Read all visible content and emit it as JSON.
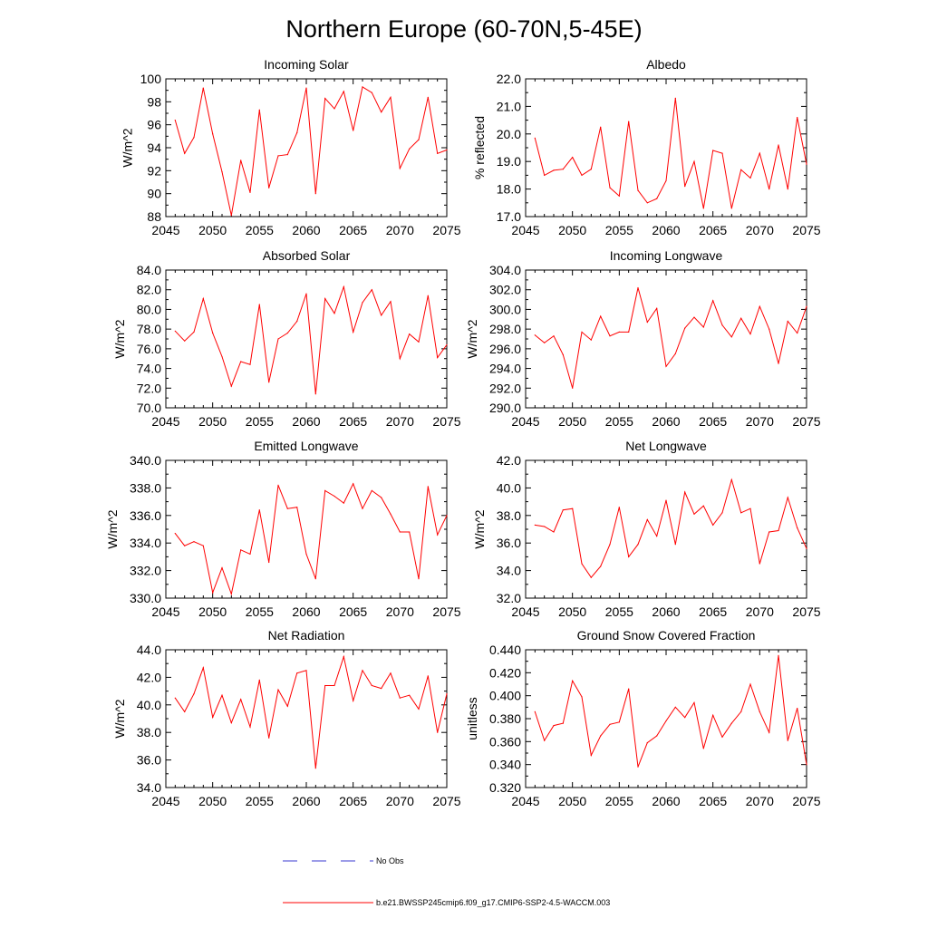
{
  "figure": {
    "title": "Northern Europe (60-70N,5-45E)"
  },
  "legend": {
    "obs_label": "No Obs",
    "obs_color": "#3a3ad0",
    "model_label": "b.e21.BWSSP245cmip6.f09_g17.CMIP6-SSP2-4.5-WACCM.003",
    "model_color": "#ff0000"
  },
  "chart_data": [
    {
      "type": "line",
      "title": "Incoming Solar",
      "xlabel": "",
      "ylabel": "W/m^2",
      "xlim": [
        2045,
        2075
      ],
      "ylim": [
        88,
        100
      ],
      "xticks": [
        "2045",
        "2050",
        "2055",
        "2060",
        "2065",
        "2070",
        "2075"
      ],
      "yticks": [
        "88",
        "90",
        "92",
        "94",
        "96",
        "98",
        "100"
      ],
      "x": [
        2046,
        2047,
        2048,
        2049,
        2050,
        2051,
        2052,
        2053,
        2054,
        2055,
        2056,
        2057,
        2058,
        2059,
        2060,
        2061,
        2062,
        2063,
        2064,
        2065,
        2066,
        2067,
        2068,
        2069,
        2070,
        2071,
        2072,
        2073,
        2074,
        2075
      ],
      "series": [
        {
          "name": "b.e21.BWSSP245cmip6.f09_g17.CMIP6-SSP2-4.5-WACCM.003",
          "values": [
            96.4,
            93.5,
            94.9,
            99.2,
            95.2,
            91.9,
            88.1,
            92.9,
            90.1,
            97.3,
            90.5,
            93.3,
            93.4,
            95.3,
            99.2,
            90.0,
            98.3,
            97.4,
            98.9,
            95.5,
            99.3,
            98.8,
            97.1,
            98.4,
            92.2,
            93.9,
            94.7,
            98.4,
            93.5,
            93.8
          ]
        }
      ]
    },
    {
      "type": "line",
      "title": "Albedo",
      "xlabel": "",
      "ylabel": "% reflected",
      "xlim": [
        2045,
        2075
      ],
      "ylim": [
        17.0,
        22.0
      ],
      "xticks": [
        "2045",
        "2050",
        "2055",
        "2060",
        "2065",
        "2070",
        "2075"
      ],
      "yticks": [
        "17.0",
        "18.0",
        "19.0",
        "20.0",
        "21.0",
        "22.0"
      ],
      "x": [
        2046,
        2047,
        2048,
        2049,
        2050,
        2051,
        2052,
        2053,
        2054,
        2055,
        2056,
        2057,
        2058,
        2059,
        2060,
        2061,
        2062,
        2063,
        2064,
        2065,
        2066,
        2067,
        2068,
        2069,
        2070,
        2071,
        2072,
        2073,
        2074,
        2075
      ],
      "series": [
        {
          "name": "b.e21.BWSSP245cmip6.f09_g17.CMIP6-SSP2-4.5-WACCM.003",
          "values": [
            19.85,
            18.5,
            18.68,
            18.72,
            19.15,
            18.5,
            18.72,
            20.25,
            18.05,
            17.75,
            20.45,
            17.95,
            17.5,
            17.65,
            18.3,
            21.3,
            18.1,
            19.0,
            17.3,
            19.4,
            19.3,
            17.3,
            18.7,
            18.4,
            19.3,
            18.0,
            19.6,
            18.0,
            20.6,
            18.9
          ]
        }
      ]
    },
    {
      "type": "line",
      "title": "Absorbed Solar",
      "xlabel": "",
      "ylabel": "W/m^2",
      "xlim": [
        2045,
        2075
      ],
      "ylim": [
        70.0,
        84.0
      ],
      "xticks": [
        "2045",
        "2050",
        "2055",
        "2060",
        "2065",
        "2070",
        "2075"
      ],
      "yticks": [
        "70.0",
        "72.0",
        "74.0",
        "76.0",
        "78.0",
        "80.0",
        "82.0",
        "84.0"
      ],
      "x": [
        2046,
        2047,
        2048,
        2049,
        2050,
        2051,
        2052,
        2053,
        2054,
        2055,
        2056,
        2057,
        2058,
        2059,
        2060,
        2061,
        2062,
        2063,
        2064,
        2065,
        2066,
        2067,
        2068,
        2069,
        2070,
        2071,
        2072,
        2073,
        2074,
        2075
      ],
      "series": [
        {
          "name": "b.e21.BWSSP245cmip6.f09_g17.CMIP6-SSP2-4.5-WACCM.003",
          "values": [
            77.8,
            76.8,
            77.7,
            81.1,
            77.6,
            75.2,
            72.2,
            74.7,
            74.4,
            80.5,
            72.6,
            77.0,
            77.6,
            78.8,
            81.6,
            71.4,
            81.1,
            79.6,
            82.3,
            77.7,
            80.7,
            82.0,
            79.4,
            80.8,
            75.0,
            77.5,
            76.7,
            81.4,
            75.1,
            76.4
          ]
        }
      ]
    },
    {
      "type": "line",
      "title": "Incoming Longwave",
      "xlabel": "",
      "ylabel": "W/m^2",
      "xlim": [
        2045,
        2075
      ],
      "ylim": [
        290.0,
        304.0
      ],
      "xticks": [
        "2045",
        "2050",
        "2055",
        "2060",
        "2065",
        "2070",
        "2075"
      ],
      "yticks": [
        "290.0",
        "292.0",
        "294.0",
        "296.0",
        "298.0",
        "300.0",
        "302.0",
        "304.0"
      ],
      "x": [
        2046,
        2047,
        2048,
        2049,
        2050,
        2051,
        2052,
        2053,
        2054,
        2055,
        2056,
        2057,
        2058,
        2059,
        2060,
        2061,
        2062,
        2063,
        2064,
        2065,
        2066,
        2067,
        2068,
        2069,
        2070,
        2071,
        2072,
        2073,
        2074,
        2075
      ],
      "series": [
        {
          "name": "b.e21.BWSSP245cmip6.f09_g17.CMIP6-SSP2-4.5-WACCM.003",
          "values": [
            297.4,
            296.6,
            297.3,
            295.4,
            292.0,
            297.7,
            296.9,
            299.3,
            297.3,
            297.7,
            297.7,
            302.2,
            298.7,
            300.1,
            294.2,
            295.5,
            298.1,
            299.2,
            298.2,
            300.9,
            298.4,
            297.2,
            299.1,
            297.5,
            300.3,
            298.0,
            294.5,
            298.8,
            297.6,
            300.3
          ]
        }
      ]
    },
    {
      "type": "line",
      "title": "Emitted Longwave",
      "xlabel": "",
      "ylabel": "W/m^2",
      "xlim": [
        2045,
        2075
      ],
      "ylim": [
        330.0,
        340.0
      ],
      "xticks": [
        "2045",
        "2050",
        "2055",
        "2060",
        "2065",
        "2070",
        "2075"
      ],
      "yticks": [
        "330.0",
        "332.0",
        "334.0",
        "336.0",
        "338.0",
        "340.0"
      ],
      "x": [
        2046,
        2047,
        2048,
        2049,
        2050,
        2051,
        2052,
        2053,
        2054,
        2055,
        2056,
        2057,
        2058,
        2059,
        2060,
        2061,
        2062,
        2063,
        2064,
        2065,
        2066,
        2067,
        2068,
        2069,
        2070,
        2071,
        2072,
        2073,
        2074,
        2075
      ],
      "series": [
        {
          "name": "b.e21.BWSSP245cmip6.f09_g17.CMIP6-SSP2-4.5-WACCM.003",
          "values": [
            334.7,
            333.8,
            334.1,
            333.8,
            330.4,
            332.2,
            330.3,
            333.5,
            333.2,
            336.4,
            332.6,
            338.2,
            336.5,
            336.6,
            333.2,
            331.4,
            337.8,
            337.4,
            336.9,
            338.3,
            336.5,
            337.8,
            337.3,
            336.1,
            334.8,
            334.8,
            331.4,
            338.1,
            334.6,
            336.0
          ]
        }
      ]
    },
    {
      "type": "line",
      "title": "Net Longwave",
      "xlabel": "",
      "ylabel": "W/m^2",
      "xlim": [
        2045,
        2075
      ],
      "ylim": [
        32.0,
        42.0
      ],
      "xticks": [
        "2045",
        "2050",
        "2055",
        "2060",
        "2065",
        "2070",
        "2075"
      ],
      "yticks": [
        "32.0",
        "34.0",
        "36.0",
        "38.0",
        "40.0",
        "42.0"
      ],
      "x": [
        2046,
        2047,
        2048,
        2049,
        2050,
        2051,
        2052,
        2053,
        2054,
        2055,
        2056,
        2057,
        2058,
        2059,
        2060,
        2061,
        2062,
        2063,
        2064,
        2065,
        2066,
        2067,
        2068,
        2069,
        2070,
        2071,
        2072,
        2073,
        2074,
        2075
      ],
      "series": [
        {
          "name": "b.e21.BWSSP245cmip6.f09_g17.CMIP6-SSP2-4.5-WACCM.003",
          "values": [
            37.3,
            37.2,
            36.8,
            38.4,
            38.5,
            34.5,
            33.5,
            34.3,
            35.9,
            38.6,
            35.0,
            35.9,
            37.7,
            36.5,
            39.1,
            35.9,
            39.7,
            38.1,
            38.7,
            37.3,
            38.2,
            40.6,
            38.2,
            38.5,
            34.5,
            36.8,
            36.9,
            39.3,
            37.1,
            35.6
          ]
        }
      ]
    },
    {
      "type": "line",
      "title": "Net Radiation",
      "xlabel": "",
      "ylabel": "W/m^2",
      "xlim": [
        2045,
        2075
      ],
      "ylim": [
        34.0,
        44.0
      ],
      "xticks": [
        "2045",
        "2050",
        "2055",
        "2060",
        "2065",
        "2070",
        "2075"
      ],
      "yticks": [
        "34.0",
        "36.0",
        "38.0",
        "40.0",
        "42.0",
        "44.0"
      ],
      "x": [
        2046,
        2047,
        2048,
        2049,
        2050,
        2051,
        2052,
        2053,
        2054,
        2055,
        2056,
        2057,
        2058,
        2059,
        2060,
        2061,
        2062,
        2063,
        2064,
        2065,
        2066,
        2067,
        2068,
        2069,
        2070,
        2071,
        2072,
        2073,
        2074,
        2075
      ],
      "series": [
        {
          "name": "b.e21.BWSSP245cmip6.f09_g17.CMIP6-SSP2-4.5-WACCM.003",
          "values": [
            40.5,
            39.5,
            40.8,
            42.7,
            39.1,
            40.7,
            38.7,
            40.4,
            38.4,
            41.8,
            37.6,
            41.1,
            39.9,
            42.3,
            42.5,
            35.4,
            41.4,
            41.4,
            43.5,
            40.3,
            42.5,
            41.4,
            41.2,
            42.3,
            40.5,
            40.7,
            39.7,
            42.1,
            38.0,
            40.8
          ]
        }
      ]
    },
    {
      "type": "line",
      "title": "Ground Snow Covered Fraction",
      "xlabel": "",
      "ylabel": "unitless",
      "xlim": [
        2045,
        2075
      ],
      "ylim": [
        0.32,
        0.44
      ],
      "xticks": [
        "2045",
        "2050",
        "2055",
        "2060",
        "2065",
        "2070",
        "2075"
      ],
      "yticks": [
        "0.320",
        "0.340",
        "0.360",
        "0.380",
        "0.400",
        "0.420",
        "0.440"
      ],
      "x": [
        2046,
        2047,
        2048,
        2049,
        2050,
        2051,
        2052,
        2053,
        2054,
        2055,
        2056,
        2057,
        2058,
        2059,
        2060,
        2061,
        2062,
        2063,
        2064,
        2065,
        2066,
        2067,
        2068,
        2069,
        2070,
        2071,
        2072,
        2073,
        2074,
        2075
      ],
      "series": [
        {
          "name": "b.e21.BWSSP245cmip6.f09_g17.CMIP6-SSP2-4.5-WACCM.003",
          "values": [
            0.386,
            0.361,
            0.374,
            0.376,
            0.413,
            0.399,
            0.348,
            0.365,
            0.375,
            0.377,
            0.406,
            0.338,
            0.359,
            0.365,
            0.378,
            0.39,
            0.381,
            0.394,
            0.354,
            0.383,
            0.364,
            0.376,
            0.386,
            0.41,
            0.386,
            0.368,
            0.435,
            0.361,
            0.389,
            0.34
          ]
        }
      ]
    }
  ]
}
